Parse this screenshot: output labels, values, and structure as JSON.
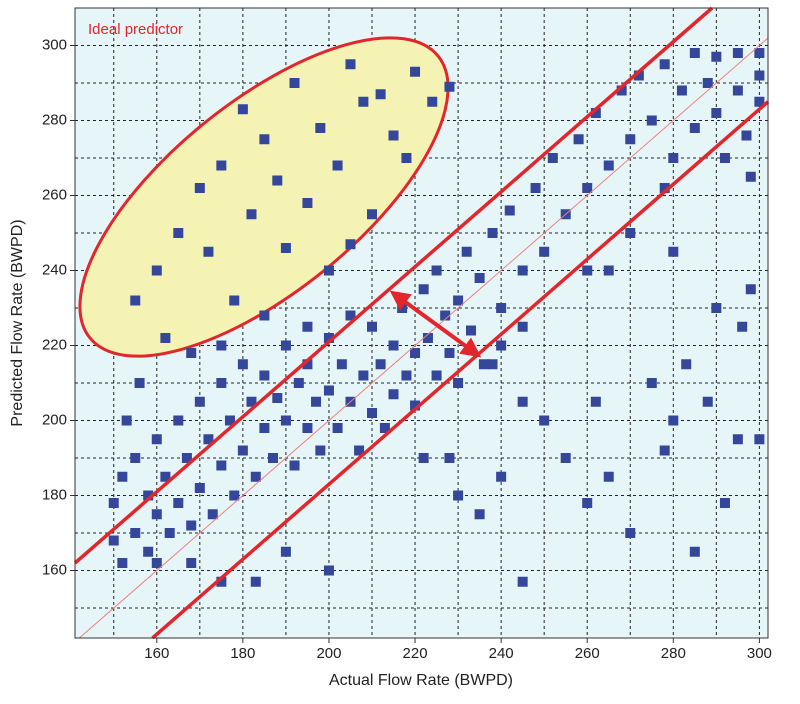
{
  "chart_data": {
    "type": "scatter",
    "annotation": "Ideal predictor",
    "x_label": "Actual Flow Rate (BWPD)",
    "y_label": "Predicted Flow Rate (BWPD)",
    "color": "#34479a",
    "xlim": [
      141,
      302
    ],
    "ylim": [
      142,
      310
    ],
    "xticks": [
      160,
      180,
      200,
      220,
      240,
      260,
      280,
      300
    ],
    "yticks": [
      160,
      180,
      200,
      220,
      240,
      260,
      280,
      300
    ],
    "xgrid": [
      150,
      160,
      170,
      180,
      190,
      200,
      210,
      220,
      230,
      240,
      250,
      260,
      270,
      280,
      290,
      300
    ],
    "ygrid": [
      150,
      160,
      170,
      180,
      190,
      200,
      210,
      220,
      230,
      240,
      250,
      260,
      270,
      280,
      290,
      300
    ],
    "grid": true,
    "reference_lines": [
      {
        "color": "#f08080",
        "width": 1,
        "x": [
          142,
          302
        ],
        "y": [
          142,
          302
        ]
      },
      {
        "color": "#e3262b",
        "width": 3.5,
        "x": [
          141,
          289
        ],
        "y": [
          162,
          310
        ]
      },
      {
        "color": "#e3262b",
        "width": 3.5,
        "x": [
          159,
          302
        ],
        "y": [
          142,
          285
        ]
      }
    ],
    "x": [
      155,
      160,
      162,
      165,
      168,
      170,
      172,
      175,
      178,
      180,
      182,
      185,
      188,
      190,
      192,
      195,
      198,
      200,
      202,
      205,
      208,
      210,
      212,
      215,
      218,
      220,
      224,
      228,
      185,
      195,
      205,
      175,
      150,
      150,
      152,
      152,
      153,
      155,
      155,
      156,
      158,
      158,
      160,
      160,
      160,
      162,
      163,
      165,
      165,
      167,
      168,
      170,
      170,
      172,
      173,
      175,
      175,
      177,
      178,
      180,
      180,
      182,
      183,
      185,
      185,
      187,
      188,
      190,
      190,
      192,
      193,
      195,
      195,
      197,
      198,
      200,
      200,
      202,
      203,
      205,
      205,
      207,
      208,
      210,
      210,
      212,
      213,
      215,
      215,
      217,
      218,
      220,
      220,
      222,
      223,
      225,
      225,
      227,
      228,
      230,
      230,
      232,
      233,
      235,
      236,
      238,
      240,
      240,
      242,
      245,
      245,
      248,
      250,
      252,
      255,
      258,
      260,
      262,
      265,
      268,
      270,
      272,
      275,
      278,
      280,
      282,
      285,
      285,
      288,
      290,
      290,
      292,
      295,
      295,
      297,
      300,
      300,
      300,
      298,
      250,
      255,
      260,
      262,
      265,
      270,
      275,
      278,
      280,
      283,
      285,
      288,
      290,
      292,
      295,
      298,
      300,
      245,
      240,
      235,
      230,
      228,
      222,
      175,
      168,
      190,
      200,
      183,
      238,
      245,
      260,
      270,
      280,
      296,
      278,
      265
    ],
    "values": [
      232,
      240,
      222,
      250,
      218,
      262,
      245,
      268,
      232,
      283,
      255,
      275,
      264,
      246,
      290,
      258,
      278,
      240,
      268,
      295,
      285,
      255,
      287,
      276,
      270,
      293,
      285,
      289,
      228,
      225,
      247,
      220,
      168,
      178,
      162,
      185,
      200,
      170,
      190,
      210,
      165,
      180,
      162,
      175,
      195,
      185,
      170,
      178,
      200,
      190,
      172,
      182,
      205,
      195,
      175,
      188,
      210,
      200,
      180,
      192,
      215,
      205,
      185,
      198,
      212,
      190,
      206,
      200,
      220,
      188,
      210,
      198,
      215,
      205,
      192,
      208,
      222,
      198,
      215,
      205,
      228,
      192,
      212,
      202,
      225,
      215,
      198,
      220,
      207,
      230,
      212,
      218,
      204,
      235,
      222,
      212,
      240,
      228,
      218,
      232,
      210,
      245,
      224,
      238,
      215,
      250,
      230,
      220,
      256,
      240,
      225,
      262,
      245,
      270,
      255,
      275,
      262,
      282,
      268,
      288,
      275,
      292,
      280,
      295,
      270,
      288,
      298,
      278,
      290,
      282,
      297,
      270,
      288,
      298,
      276,
      292,
      285,
      298,
      265,
      200,
      190,
      178,
      205,
      185,
      170,
      210,
      192,
      200,
      215,
      165,
      205,
      230,
      178,
      195,
      235,
      195,
      157,
      185,
      175,
      180,
      190,
      190,
      157,
      162,
      165,
      160,
      157,
      215,
      205,
      240,
      250,
      245,
      225,
      262,
      240
    ]
  }
}
